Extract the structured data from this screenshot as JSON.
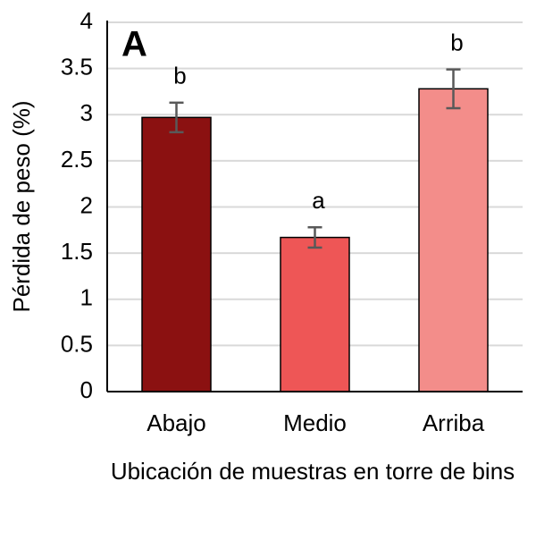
{
  "chart_data": {
    "type": "bar",
    "panel_label": "A",
    "ylabel": "Pérdida de peso (%)",
    "xlabel": "Ubicación de muestras en torre de bins",
    "categories": [
      "Abajo",
      "Medio",
      "Arriba"
    ],
    "values": [
      2.97,
      1.67,
      3.28
    ],
    "errors": [
      0.16,
      0.11,
      0.21
    ],
    "annotations": [
      "b",
      "a",
      "b"
    ],
    "colors": [
      "#8b1111",
      "#ee5656",
      "#f38d8a"
    ],
    "ylim": [
      0,
      4
    ],
    "yticks": [
      0,
      0.5,
      1,
      1.5,
      2,
      2.5,
      3,
      3.5,
      4
    ],
    "grid": true
  }
}
